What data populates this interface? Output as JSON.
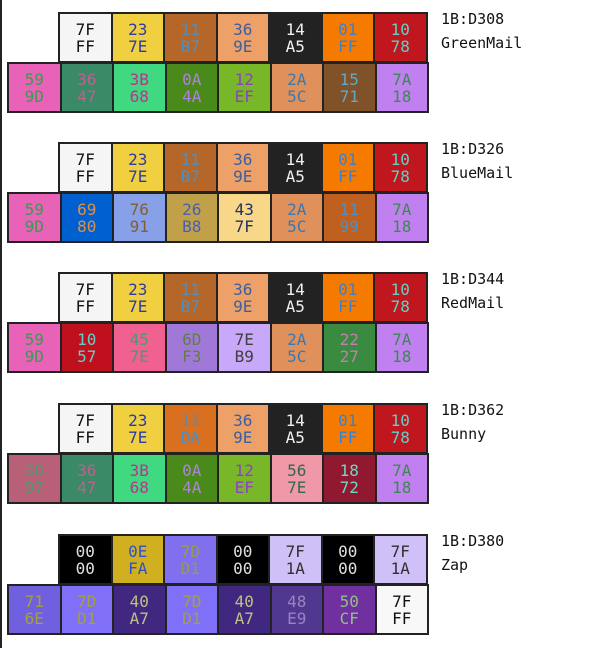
{
  "groups": [
    {
      "address": "1B:D308",
      "name": "GreenMail",
      "row1": [
        [
          "7F",
          "FF",
          "#f5f5f5",
          "#111111"
        ],
        [
          "23",
          "7E",
          "#f0d040",
          "#2a3aa8"
        ],
        [
          "11",
          "B7",
          "#b5672a",
          "#4a90c8"
        ],
        [
          "36",
          "9E",
          "#eda068",
          "#3a60a0"
        ],
        [
          "14",
          "A5",
          "#222222",
          "#f0f0f0"
        ],
        [
          "01",
          "FF",
          "#f57a00",
          "#3a80d0"
        ],
        [
          "10",
          "78",
          "#c0161e",
          "#60d0c8"
        ]
      ],
      "row2": [
        [
          "59",
          "9D",
          "#e862b8",
          "#3a9a50"
        ],
        [
          "36",
          "47",
          "#3a8a68",
          "#c06090"
        ],
        [
          "3B",
          "68",
          "#40d880",
          "#c03090"
        ],
        [
          "0A",
          "4A",
          "#4a8a1a",
          "#b080e0"
        ],
        [
          "12",
          "EF",
          "#78b828",
          "#9040c0"
        ],
        [
          "2A",
          "5C",
          "#e0905a",
          "#3a78b0"
        ],
        [
          "15",
          "71",
          "#80522a",
          "#60a8c8"
        ],
        [
          "7A",
          "18",
          "#c080f0",
          "#3a8a50"
        ]
      ]
    },
    {
      "address": "1B:D326",
      "name": "BlueMail",
      "row1": [
        [
          "7F",
          "FF",
          "#f5f5f5",
          "#111111"
        ],
        [
          "23",
          "7E",
          "#f0d040",
          "#2a3aa8"
        ],
        [
          "11",
          "B7",
          "#b5672a",
          "#4a90c8"
        ],
        [
          "36",
          "9E",
          "#eda068",
          "#3a60a0"
        ],
        [
          "14",
          "A5",
          "#222222",
          "#f0f0f0"
        ],
        [
          "01",
          "FF",
          "#f57a00",
          "#3a80d0"
        ],
        [
          "10",
          "78",
          "#c0161e",
          "#60d0c8"
        ]
      ],
      "row2": [
        [
          "59",
          "9D",
          "#e862b8",
          "#3a9a50"
        ],
        [
          "69",
          "80",
          "#0060d0",
          "#e09040"
        ],
        [
          "76",
          "91",
          "#88a0e8",
          "#806030"
        ],
        [
          "26",
          "B8",
          "#c0a048",
          "#4860b0"
        ],
        [
          "43",
          "7F",
          "#f8d888",
          "#203068"
        ],
        [
          "2A",
          "5C",
          "#e0905a",
          "#3a78b0"
        ],
        [
          "11",
          "99",
          "#c06020",
          "#4a90c8"
        ],
        [
          "7A",
          "18",
          "#c080f0",
          "#3a8a50"
        ]
      ]
    },
    {
      "address": "1B:D344",
      "name": "RedMail",
      "row1": [
        [
          "7F",
          "FF",
          "#f5f5f5",
          "#111111"
        ],
        [
          "23",
          "7E",
          "#f0d040",
          "#2a3aa8"
        ],
        [
          "11",
          "B7",
          "#b5672a",
          "#4a90c8"
        ],
        [
          "36",
          "9E",
          "#eda068",
          "#3a60a0"
        ],
        [
          "14",
          "A5",
          "#222222",
          "#f0f0f0"
        ],
        [
          "01",
          "FF",
          "#f57a00",
          "#3a80d0"
        ],
        [
          "10",
          "78",
          "#c0161e",
          "#60d0c8"
        ]
      ],
      "row2": [
        [
          "59",
          "9D",
          "#e862b8",
          "#3a9a50"
        ],
        [
          "10",
          "57",
          "#c0101e",
          "#60d0c8"
        ],
        [
          "45",
          "7E",
          "#f06090",
          "#40a070"
        ],
        [
          "6D",
          "F3",
          "#a078d8",
          "#608040"
        ],
        [
          "7E",
          "B9",
          "#c8a8f8",
          "#404040"
        ],
        [
          "2A",
          "5C",
          "#e0905a",
          "#3a78b0"
        ],
        [
          "22",
          "27",
          "#3a8a40",
          "#c080b0"
        ],
        [
          "7A",
          "18",
          "#c080f0",
          "#3a8a50"
        ]
      ]
    },
    {
      "address": "1B:D362",
      "name": "Bunny",
      "row1": [
        [
          "7F",
          "FF",
          "#f5f5f5",
          "#111111"
        ],
        [
          "23",
          "7E",
          "#f0d040",
          "#2a3aa8"
        ],
        [
          "11",
          "DA",
          "#d87020",
          "#4a90c8"
        ],
        [
          "36",
          "9E",
          "#eda068",
          "#3a60a0"
        ],
        [
          "14",
          "A5",
          "#222222",
          "#f0f0f0"
        ],
        [
          "01",
          "FF",
          "#f57a00",
          "#3a80d0"
        ],
        [
          "10",
          "78",
          "#c0161e",
          "#60d0c8"
        ]
      ],
      "row2": [
        [
          "3D",
          "97",
          "#b86078",
          "#509870"
        ],
        [
          "36",
          "47",
          "#3a8a68",
          "#c06090"
        ],
        [
          "3B",
          "68",
          "#40d880",
          "#c03090"
        ],
        [
          "0A",
          "4A",
          "#4a8a1a",
          "#b080e0"
        ],
        [
          "12",
          "EF",
          "#78b828",
          "#9040c0"
        ],
        [
          "56",
          "7E",
          "#f098a8",
          "#306850"
        ],
        [
          "18",
          "72",
          "#901830",
          "#70d8c0"
        ],
        [
          "7A",
          "18",
          "#c080f0",
          "#3a8a50"
        ]
      ]
    },
    {
      "address": "1B:D380",
      "name": "Zap",
      "row1": [
        [
          "00",
          "00",
          "#000000",
          "#e0e0e0"
        ],
        [
          "0E",
          "FA",
          "#d0b020",
          "#3050d0"
        ],
        [
          "7D",
          "D1",
          "#8070f0",
          "#90a040"
        ],
        [
          "00",
          "00",
          "#000000",
          "#e0e0e0"
        ],
        [
          "7F",
          "1A",
          "#d0c0f8",
          "#303030"
        ],
        [
          "00",
          "00",
          "#000000",
          "#e0e0e0"
        ],
        [
          "7F",
          "1A",
          "#d0c0f8",
          "#303030"
        ]
      ],
      "row2": [
        [
          "71",
          "6E",
          "#7060e0",
          "#a0a040"
        ],
        [
          "7D",
          "D1",
          "#8070f8",
          "#a0a040"
        ],
        [
          "40",
          "A7",
          "#402880",
          "#c0c080"
        ],
        [
          "7D",
          "D1",
          "#8070f8",
          "#a0a040"
        ],
        [
          "40",
          "A7",
          "#402880",
          "#c0c080"
        ],
        [
          "48",
          "E9",
          "#503890",
          "#a080c0"
        ],
        [
          "50",
          "CF",
          "#7030a0",
          "#90c080"
        ],
        [
          "7F",
          "FF",
          "#f8f8f8",
          "#111111"
        ]
      ]
    }
  ]
}
